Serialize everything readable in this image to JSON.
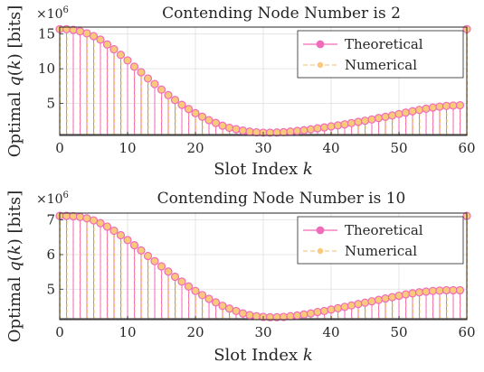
{
  "chart_data": [
    {
      "type": "stem",
      "title": "Contending Node Number is 2",
      "xlabel": "Slot Index k",
      "ylabel": "Optimal q(k) [bits]",
      "y_multiplier": "×10^6",
      "xlim": [
        0,
        60
      ],
      "ylim": [
        0.4,
        16
      ],
      "xticks": [
        0,
        10,
        20,
        30,
        40,
        50,
        60
      ],
      "yticks": [
        5,
        10,
        15
      ],
      "grid": true,
      "legend_position": "top-right",
      "series": [
        {
          "name": "Theoretical",
          "color": "#f06cb8",
          "style": "solid"
        },
        {
          "name": "Numerical",
          "color": "#fbc97a",
          "style": "dashed"
        }
      ],
      "x": [
        0,
        1,
        2,
        3,
        4,
        5,
        6,
        7,
        8,
        9,
        10,
        11,
        12,
        13,
        14,
        15,
        16,
        17,
        18,
        19,
        20,
        21,
        22,
        23,
        24,
        25,
        26,
        27,
        28,
        29,
        30,
        31,
        32,
        33,
        34,
        35,
        36,
        37,
        38,
        39,
        40,
        41,
        42,
        43,
        44,
        45,
        46,
        47,
        48,
        49,
        50,
        51,
        52,
        53,
        54,
        55,
        56,
        57,
        58,
        59,
        60
      ],
      "values": [
        15.7,
        15.7,
        15.6,
        15.4,
        15.1,
        14.7,
        14.2,
        13.5,
        12.8,
        12.0,
        11.2,
        10.3,
        9.5,
        8.6,
        7.8,
        7.0,
        6.2,
        5.5,
        4.8,
        4.2,
        3.6,
        3.1,
        2.6,
        2.2,
        1.8,
        1.5,
        1.3,
        1.1,
        0.95,
        0.85,
        0.8,
        0.8,
        0.82,
        0.87,
        0.95,
        1.05,
        1.15,
        1.28,
        1.42,
        1.55,
        1.7,
        1.85,
        2.0,
        2.18,
        2.35,
        2.52,
        2.7,
        2.9,
        3.08,
        3.28,
        3.48,
        3.68,
        3.88,
        4.08,
        4.25,
        4.42,
        4.55,
        4.65,
        4.7,
        4.75,
        15.7
      ]
    },
    {
      "type": "stem",
      "title": "Contending Node Number is 10",
      "xlabel": "Slot Index k",
      "ylabel": "Optimal q(k) [bits]",
      "y_multiplier": "×10^6",
      "xlim": [
        0,
        60
      ],
      "ylim": [
        4.12,
        7.2
      ],
      "xticks": [
        0,
        10,
        20,
        30,
        40,
        50,
        60
      ],
      "yticks": [
        5,
        6,
        7
      ],
      "grid": true,
      "legend_position": "top-right",
      "series": [
        {
          "name": "Theoretical",
          "color": "#f06cb8",
          "style": "solid"
        },
        {
          "name": "Numerical",
          "color": "#fbc97a",
          "style": "dashed"
        }
      ],
      "x": [
        0,
        1,
        2,
        3,
        4,
        5,
        6,
        7,
        8,
        9,
        10,
        11,
        12,
        13,
        14,
        15,
        16,
        17,
        18,
        19,
        20,
        21,
        22,
        23,
        24,
        25,
        26,
        27,
        28,
        29,
        30,
        31,
        32,
        33,
        34,
        35,
        36,
        37,
        38,
        39,
        40,
        41,
        42,
        43,
        44,
        45,
        46,
        47,
        48,
        49,
        50,
        51,
        52,
        53,
        54,
        55,
        56,
        57,
        58,
        59,
        60
      ],
      "values": [
        7.12,
        7.12,
        7.11,
        7.09,
        7.05,
        6.99,
        6.91,
        6.81,
        6.69,
        6.56,
        6.42,
        6.27,
        6.12,
        5.96,
        5.81,
        5.66,
        5.51,
        5.36,
        5.22,
        5.08,
        4.95,
        4.83,
        4.72,
        4.62,
        4.52,
        4.44,
        4.37,
        4.3,
        4.25,
        4.22,
        4.2,
        4.19,
        4.19,
        4.2,
        4.22,
        4.24,
        4.27,
        4.3,
        4.34,
        4.37,
        4.41,
        4.45,
        4.49,
        4.53,
        4.57,
        4.61,
        4.65,
        4.69,
        4.73,
        4.77,
        4.81,
        4.85,
        4.88,
        4.91,
        4.93,
        4.95,
        4.96,
        4.97,
        4.97,
        4.97,
        7.12
      ]
    }
  ]
}
